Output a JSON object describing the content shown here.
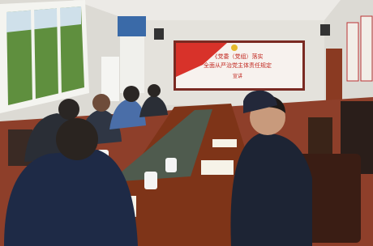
{
  "screen": {
    "lines": [
      "《党委（党组）落实",
      "全面从严治党主体责任规定",
      "宣讲"
    ]
  }
}
